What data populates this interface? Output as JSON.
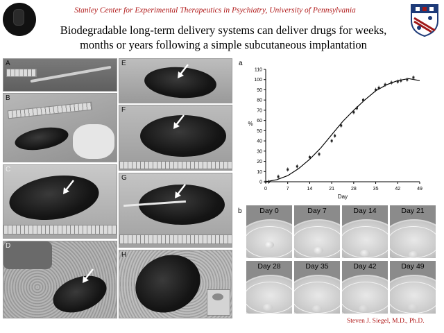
{
  "header": {
    "institution": "Stanley Center for Experimental Therapeutics in Psychiatry, University of Pennsylvania",
    "headline_line1": "Biodegradable long-term delivery systems can deliver drugs for weeks,",
    "headline_line2": "months or years following a simple subcutaneous implantation"
  },
  "photo_panels": [
    {
      "label": "A"
    },
    {
      "label": "B"
    },
    {
      "label": "C"
    },
    {
      "label": "D"
    },
    {
      "label": "E"
    },
    {
      "label": "F"
    },
    {
      "label": "G"
    },
    {
      "label": "H"
    }
  ],
  "chart_data": {
    "type": "line",
    "panel_label": "a",
    "xlabel": "Day",
    "ylabel": "%",
    "xticks": [
      0,
      7,
      14,
      21,
      28,
      35,
      42,
      49
    ],
    "yticks": [
      0,
      10,
      20,
      30,
      40,
      50,
      60,
      70,
      80,
      90,
      100,
      110
    ],
    "xlim": [
      0,
      49
    ],
    "ylim": [
      0,
      110
    ],
    "grid": false,
    "series": [
      {
        "kind": "points",
        "x": [
          0,
          1,
          4,
          7,
          10,
          14,
          17,
          21,
          22,
          24,
          28,
          29,
          31,
          35,
          36,
          38,
          40,
          42,
          43,
          45,
          47
        ],
        "y": [
          0,
          0,
          5,
          12,
          15,
          24,
          27,
          40,
          45,
          55,
          68,
          72,
          80,
          90,
          92,
          95,
          97,
          98,
          99,
          100,
          102
        ]
      },
      {
        "kind": "fit",
        "x": [
          0,
          3.5,
          7,
          10.5,
          14,
          17.5,
          21,
          24.5,
          28,
          31.5,
          35,
          38.5,
          42,
          45.5,
          49
        ],
        "y": [
          0,
          2,
          6,
          13,
          22,
          33,
          46,
          59,
          70,
          80,
          89,
          95,
          99,
          101,
          99
        ]
      }
    ]
  },
  "dish_panel": {
    "panel_label": "b",
    "days": [
      "Day 0",
      "Day 7",
      "Day 14",
      "Day 21",
      "Day 28",
      "Day 35",
      "Day 42",
      "Day 49"
    ]
  },
  "footer": {
    "author": "Steven J. Siegel, M.D., Ph.D."
  },
  "colors": {
    "institution_text": "#b01818",
    "author_text": "#b01818",
    "shield_blue": "#1d3a78",
    "shield_red": "#a01818"
  }
}
